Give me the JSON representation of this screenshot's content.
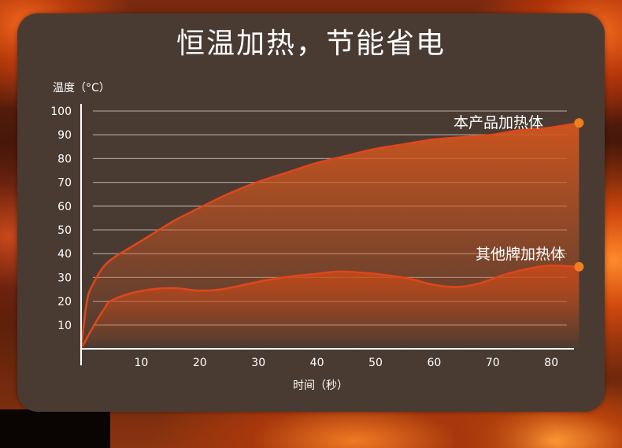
{
  "title": "恒温加热，节能省电",
  "chart_data": {
    "type": "area",
    "xlabel": "时间（秒）",
    "ylabel": "温度（°C）",
    "x_ticks": [
      10,
      20,
      30,
      40,
      50,
      60,
      70,
      80
    ],
    "y_ticks": [
      10,
      20,
      30,
      40,
      50,
      60,
      70,
      80,
      90,
      100
    ],
    "xlim": [
      0,
      85
    ],
    "ylim": [
      0,
      100
    ],
    "grid": true,
    "colors": {
      "line": "#e0461a",
      "fill": "#d2561e",
      "marker": "#f07d1e",
      "grid": "#a09890"
    },
    "series": [
      {
        "name": "本产品加热体",
        "x": [
          0,
          1,
          2,
          4,
          6,
          8,
          12,
          16,
          20,
          25,
          30,
          35,
          40,
          45,
          50,
          55,
          60,
          65,
          70,
          75,
          80,
          85
        ],
        "y": [
          0,
          20,
          27,
          35,
          39,
          42,
          48,
          54,
          59,
          65,
          70,
          74,
          78,
          81,
          84,
          86,
          88,
          89,
          90,
          92,
          93,
          95
        ]
      },
      {
        "name": "其他牌加热体",
        "x": [
          0,
          2,
          4,
          5,
          8,
          12,
          16,
          20,
          24,
          28,
          32,
          36,
          40,
          44,
          48,
          52,
          56,
          60,
          64,
          68,
          72,
          76,
          80,
          85
        ],
        "y": [
          0,
          9,
          17,
          20,
          23,
          25,
          25.5,
          24.5,
          25,
          27,
          29,
          30.5,
          31.5,
          32.5,
          32,
          31,
          29.5,
          27,
          26,
          27.5,
          31,
          33.5,
          35,
          34.5
        ]
      }
    ]
  }
}
